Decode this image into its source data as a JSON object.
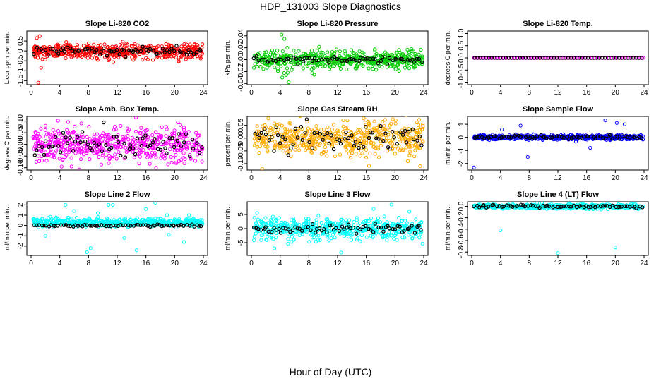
{
  "figure": {
    "title": "HDP_131003  Slope Diagnostics",
    "xlabel": "Hour of Day (UTC)",
    "baseline_color": "#000000"
  },
  "chart_data": [
    {
      "type": "scatter",
      "title": "Slope Li-820 CO2",
      "ylabel": "Licor ppm per min.",
      "color": "#ff0000",
      "xlim": [
        0,
        24
      ],
      "ylim": [
        -1.7,
        1.0
      ],
      "xticks": [
        0,
        4,
        8,
        12,
        16,
        20,
        24
      ],
      "xtick_labels": [
        "0",
        "4",
        "8",
        "12",
        "16",
        "20",
        "24"
      ],
      "yticks": [
        -1.5,
        -1.0,
        -0.5,
        0.0,
        0.5
      ],
      "ytick_labels": [
        "-1.5",
        "-1",
        "-0.5",
        "0",
        "0.5"
      ],
      "series_center": 0.0,
      "spread": 0.25,
      "baseline_spread": 0.12,
      "noise_seed": 11,
      "outliers": [
        [
          1.2,
          0.75
        ],
        [
          1.4,
          -0.85
        ],
        [
          1.0,
          -1.6
        ],
        [
          0.8,
          0.65
        ]
      ]
    },
    {
      "type": "scatter",
      "title": "Slope Li-820 Pressure",
      "ylabel": "kPa per min.",
      "color": "#00cc00",
      "xlim": [
        0,
        24
      ],
      "ylim": [
        -0.042,
        0.048
      ],
      "xticks": [
        0,
        4,
        8,
        12,
        16,
        20,
        24
      ],
      "xtick_labels": [
        "0",
        "4",
        "8",
        "12",
        "16",
        "20",
        "24"
      ],
      "yticks": [
        -0.04,
        -0.02,
        0.0,
        0.02,
        0.04
      ],
      "ytick_labels": [
        "-0.04",
        "-0.02",
        "0.00",
        "0.02",
        "0.04"
      ],
      "series_center": 0.0,
      "spread": 0.01,
      "baseline_spread": 0.004,
      "noise_seed": 23,
      "outliers": [
        [
          4.2,
          0.042
        ],
        [
          4.6,
          0.035
        ],
        [
          5.2,
          -0.038
        ],
        [
          5.0,
          0.02
        ],
        [
          4.3,
          -0.03
        ]
      ]
    },
    {
      "type": "scatter",
      "title": "Slope Li-820 Temp.",
      "ylabel": "degrees C per min.",
      "color": "#ff00ff",
      "xlim": [
        0,
        24
      ],
      "ylim": [
        -1.1,
        1.1
      ],
      "xticks": [
        0,
        4,
        8,
        12,
        16,
        20,
        24
      ],
      "xtick_labels": [
        "0",
        "4",
        "8",
        "12",
        "16",
        "20",
        "24"
      ],
      "yticks": [
        -1.0,
        -0.5,
        0.0,
        0.5,
        1.0
      ],
      "ytick_labels": [
        "-1.0",
        "-0.5",
        "0.0",
        "0.5",
        "1.0"
      ],
      "series_center": 0.0,
      "spread": 0.0,
      "baseline_spread": 0.0,
      "noise_seed": 5,
      "outliers": []
    },
    {
      "type": "scatter",
      "title": "Slope Amb. Box Temp.",
      "ylabel": "degrees C per min.",
      "color": "#ff00ff",
      "xlim": [
        0,
        24
      ],
      "ylim": [
        -0.11,
        0.12
      ],
      "xticks": [
        0,
        4,
        8,
        12,
        16,
        20,
        24
      ],
      "xtick_labels": [
        "0",
        "4",
        "8",
        "12",
        "16",
        "20",
        "24"
      ],
      "yticks": [
        -0.1,
        -0.05,
        0.0,
        0.05,
        0.1
      ],
      "ytick_labels": [
        "-0.10",
        "-0.05",
        "0.00",
        "0.05",
        "0.10"
      ],
      "series_center": 0.0,
      "spread": 0.05,
      "baseline_spread": 0.035,
      "noise_seed": 37,
      "outliers": [
        [
          17.4,
          -0.1
        ],
        [
          7.0,
          0.09
        ],
        [
          2.0,
          0.08
        ]
      ]
    },
    {
      "type": "scatter",
      "title": "Slope Gas Stream RH",
      "ylabel": "percent per min.",
      "color": "#ffaa00",
      "xlim": [
        0,
        24
      ],
      "ylim": [
        -0.125,
        0.085
      ],
      "xticks": [
        0,
        4,
        8,
        12,
        16,
        20,
        24
      ],
      "xtick_labels": [
        "0",
        "4",
        "8",
        "12",
        "16",
        "20",
        "24"
      ],
      "yticks": [
        -0.1,
        -0.05,
        0.0,
        0.05
      ],
      "ytick_labels": [
        "-0.10",
        "-0.05",
        "0.00",
        "0.05"
      ],
      "series_center": 0.0,
      "spread": 0.045,
      "baseline_spread": 0.03,
      "noise_seed": 41,
      "outliers": [
        [
          1.5,
          -0.12
        ],
        [
          12.8,
          0.07
        ],
        [
          23.5,
          -0.11
        ]
      ]
    },
    {
      "type": "scatter",
      "title": "Slope Sample Flow",
      "ylabel": "ml/min per min.",
      "color": "#0000ff",
      "xlim": [
        0,
        24
      ],
      "ylim": [
        -2.5,
        1.6
      ],
      "xticks": [
        0,
        4,
        8,
        12,
        16,
        20,
        24
      ],
      "xtick_labels": [
        "0",
        "4",
        "8",
        "12",
        "16",
        "20",
        "24"
      ],
      "yticks": [
        -2,
        -1,
        0,
        1
      ],
      "ytick_labels": [
        "-2",
        "-1",
        "0",
        "1"
      ],
      "series_center": 0.0,
      "spread": 0.12,
      "baseline_spread": 0.08,
      "noise_seed": 53,
      "outliers": [
        [
          0.3,
          -2.3
        ],
        [
          18.6,
          1.3
        ],
        [
          20.2,
          1.1
        ],
        [
          7.8,
          -1.5
        ],
        [
          6.8,
          0.9
        ],
        [
          21.3,
          1.0
        ],
        [
          16.5,
          -0.8
        ],
        [
          4.2,
          0.6
        ]
      ]
    },
    {
      "type": "scatter",
      "title": "Slope Line 2 Flow",
      "ylabel": "ml/min per min.",
      "color": "#00ffff",
      "xlim": [
        0,
        24
      ],
      "ylim": [
        -2.9,
        2.3
      ],
      "xticks": [
        0,
        4,
        8,
        12,
        16,
        20,
        24
      ],
      "xtick_labels": [
        "0",
        "4",
        "8",
        "12",
        "16",
        "20",
        "24"
      ],
      "yticks": [
        -2,
        -1,
        0,
        1,
        2
      ],
      "ytick_labels": [
        "-2",
        "-1",
        "0",
        "1",
        "2"
      ],
      "series_center": 0.3,
      "spread": 0.25,
      "baseline_spread": 0.06,
      "noise_seed": 67,
      "outliers": [
        [
          4.8,
          2.0
        ],
        [
          7.8,
          -2.6
        ],
        [
          8.3,
          -2.2
        ],
        [
          10.8,
          2.0
        ],
        [
          11.4,
          2.0
        ],
        [
          14.7,
          -2.4
        ],
        [
          17.3,
          2.2
        ],
        [
          21.3,
          -1.6
        ],
        [
          6.0,
          1.4
        ],
        [
          2.0,
          -1.0
        ],
        [
          9.3,
          1.2
        ],
        [
          16.0,
          1.6
        ],
        [
          13.0,
          -1.2
        ],
        [
          19.2,
          -0.9
        ],
        [
          22.0,
          1.0
        ]
      ]
    },
    {
      "type": "scatter",
      "title": "Slope Line 3 Flow",
      "ylabel": "ml/min per min.",
      "color": "#00ffff",
      "xlim": [
        0,
        24
      ],
      "ylim": [
        -9.5,
        9.5
      ],
      "xticks": [
        0,
        4,
        8,
        12,
        16,
        20,
        24
      ],
      "xtick_labels": [
        "0",
        "4",
        "8",
        "12",
        "16",
        "20",
        "24"
      ],
      "yticks": [
        -5,
        0,
        5
      ],
      "ytick_labels": [
        "-5",
        "0",
        "5"
      ],
      "series_center": 0.0,
      "spread": 2.6,
      "baseline_spread": 1.0,
      "noise_seed": 79,
      "outliers": [
        [
          0.8,
          5.5
        ],
        [
          12.5,
          -8.5
        ],
        [
          19.5,
          8.5
        ],
        [
          17.0,
          7.0
        ],
        [
          3.2,
          -7.0
        ],
        [
          22.0,
          6.0
        ]
      ]
    },
    {
      "type": "scatter",
      "title": "Slope Line 4 (LT) Flow",
      "ylabel": "ml/min per min.",
      "color": "#00ffff",
      "xlim": [
        0,
        24
      ],
      "ylim": [
        -0.86,
        0.08
      ],
      "xticks": [
        0,
        4,
        8,
        12,
        16,
        20,
        24
      ],
      "xtick_labels": [
        "0",
        "4",
        "8",
        "12",
        "16",
        "20",
        "24"
      ],
      "yticks": [
        -0.8,
        -0.6,
        -0.4,
        -0.2,
        0.0
      ],
      "ytick_labels": [
        "-0.8",
        "-0.6",
        "-0.4",
        "-0.2",
        "0.0"
      ],
      "series_center": 0.0,
      "spread": 0.025,
      "baseline_spread": 0.015,
      "noise_seed": 97,
      "outliers": [
        [
          4.0,
          -0.42
        ],
        [
          12.0,
          -0.82
        ],
        [
          20.0,
          -0.72
        ]
      ]
    }
  ]
}
